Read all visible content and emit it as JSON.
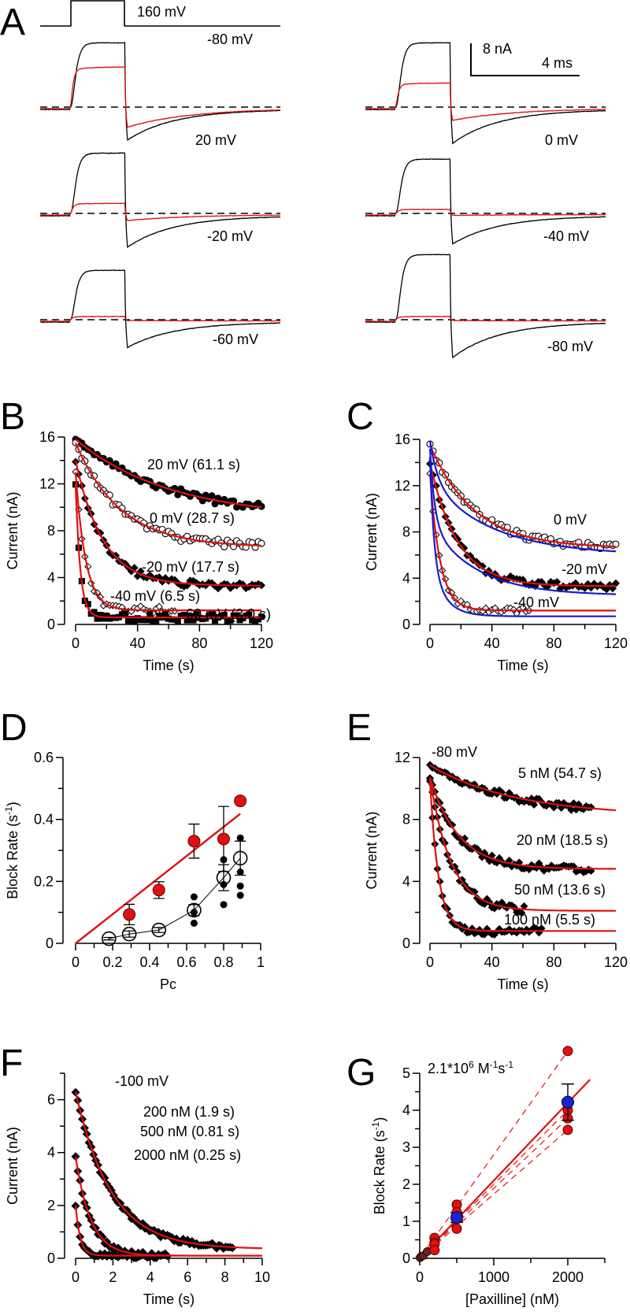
{
  "panel_labels": {
    "A": "A",
    "B": "B",
    "C": "C",
    "D": "D",
    "E": "E",
    "F": "F",
    "G": "G"
  },
  "chart_data": [
    {
      "panel": "A",
      "type": "line",
      "protocol": {
        "step_label": "160 mV",
        "hold_label": "-80 mV"
      },
      "scale_bar": {
        "current": "8 nA",
        "time": "4 ms"
      },
      "colors": {
        "control": "#000000",
        "blocked": "#e01010"
      },
      "traces": [
        {
          "label": "20 mV",
          "column": "left",
          "control_peak_nA": 16,
          "blocked_plateau_nA": 10,
          "control_tail_nA": -8.2,
          "blocked_tail_nA": -5.0
        },
        {
          "label": "0 mV",
          "column": "right",
          "control_peak_nA": 16,
          "blocked_plateau_nA": 6,
          "control_tail_nA": -9.0,
          "blocked_tail_nA": -3.3
        },
        {
          "label": "-20 mV",
          "column": "left",
          "control_peak_nA": 15,
          "blocked_plateau_nA": 2.5,
          "control_tail_nA": -8.4,
          "blocked_tail_nA": -1.8
        },
        {
          "label": "-40 mV",
          "column": "right",
          "control_peak_nA": 13.5,
          "blocked_plateau_nA": 1.0,
          "control_tail_nA": -7.6,
          "blocked_tail_nA": -0.5
        },
        {
          "label": "-60 mV",
          "column": "left",
          "control_peak_nA": 12.3,
          "blocked_plateau_nA": 0.8,
          "control_tail_nA": -6.9,
          "blocked_tail_nA": -0.2
        },
        {
          "label": "-80 mV",
          "column": "right",
          "control_peak_nA": 16.2,
          "blocked_plateau_nA": 0.8,
          "control_tail_nA": -9.4,
          "blocked_tail_nA": -0.2
        }
      ]
    },
    {
      "panel": "B",
      "type": "scatter",
      "xlabel": "Time (s)",
      "ylabel": "Current (nA)",
      "xlim": [
        0,
        120
      ],
      "ylim": [
        0,
        16
      ],
      "xticks": [
        "0",
        "40",
        "80",
        "120"
      ],
      "yticks": [
        "0",
        "4",
        "8",
        "12",
        "16"
      ],
      "fit_color": "#e01010",
      "series": [
        {
          "label": "20 mV (61.1 s)",
          "marker": "filled-circle",
          "start": 15.8,
          "plateau": 9.06,
          "tau": 61.1,
          "t_end": 120
        },
        {
          "label": "0 mV (28.7 s)",
          "marker": "open-circle",
          "start": 15.5,
          "plateau": 6.6,
          "tau": 28.7,
          "t_end": 120
        },
        {
          "label": "-20 mV (17.7 s)",
          "marker": "filled-diamond",
          "start": 14.0,
          "plateau": 3.3,
          "tau": 17.7,
          "t_end": 120
        },
        {
          "label": "-40 mV (6.5 s)",
          "marker": "open-diamond",
          "start": 13.0,
          "plateau": 1.2,
          "tau": 6.5,
          "t_end": 65
        },
        {
          "label": "-60 mV (3.0 s)",
          "marker": "filled-square",
          "start": 12.0,
          "plateau": 0.6,
          "tau": 3.0,
          "t_end": 120
        }
      ]
    },
    {
      "panel": "C",
      "type": "scatter",
      "xlabel": "Time (s)",
      "ylabel": "Current (nA)",
      "xlim": [
        0,
        120
      ],
      "ylim": [
        0,
        16
      ],
      "xticks": [
        "0",
        "40",
        "80",
        "120"
      ],
      "yticks": [
        "0",
        "4",
        "8",
        "12",
        "16"
      ],
      "colors": {
        "single_exp_fit": "#e01010",
        "double_exp_fit": "#1a1ad0"
      },
      "series": [
        {
          "label": "0 mV",
          "marker": "open-circle",
          "start": 15.5,
          "plateau": 6.6,
          "tau": 28.7,
          "double_exp": {
            "offset": 6.0,
            "a1": 3.5,
            "tau1": 5,
            "a2": 6.4,
            "tau2": 40
          },
          "t_end": 120
        },
        {
          "label": "-20 mV",
          "marker": "filled-diamond",
          "start": 14.0,
          "plateau": 3.3,
          "tau": 17.7,
          "double_exp": {
            "offset": 2.5,
            "a1": 6.5,
            "tau1": 3,
            "a2": 6.2,
            "tau2": 30
          },
          "t_end": 120
        },
        {
          "label": "-40 mV",
          "marker": "open-diamond",
          "start": 13.0,
          "plateau": 1.2,
          "tau": 6.5,
          "double_exp": {
            "offset": 0.7,
            "a1": 9.0,
            "tau1": 2.5,
            "a2": 4.8,
            "tau2": 9
          },
          "t_end": 65
        }
      ]
    },
    {
      "panel": "D",
      "type": "scatter",
      "xlabel": "Pc",
      "ylabel": "Block Rate (s",
      "ylabel_sup": "-1",
      "ylabel_end": ")",
      "xlim": [
        0,
        1
      ],
      "ylim": [
        0,
        0.6
      ],
      "xticks": [
        "0",
        "0.2",
        "0.4",
        "0.6",
        "0.8",
        "1"
      ],
      "yticks": [
        "0",
        "0.2",
        "0.4",
        "0.6"
      ],
      "red_points": [
        {
          "x": 0.29,
          "y": 0.093,
          "err": 0.033
        },
        {
          "x": 0.45,
          "y": 0.172,
          "err": 0.027
        },
        {
          "x": 0.64,
          "y": 0.33,
          "err": 0.055
        },
        {
          "x": 0.8,
          "y": 0.337,
          "err": 0.105
        },
        {
          "x": 0.89,
          "y": 0.46,
          "err": 0.008
        }
      ],
      "red_line": {
        "slope": 0.47,
        "x_end": 0.89
      },
      "open_means": [
        {
          "x": 0.18,
          "y": 0.015,
          "err": 0.004
        },
        {
          "x": 0.29,
          "y": 0.03,
          "err": 0.01
        },
        {
          "x": 0.45,
          "y": 0.043,
          "err": 0.008
        },
        {
          "x": 0.64,
          "y": 0.107,
          "err": 0.018
        },
        {
          "x": 0.8,
          "y": 0.212,
          "err": 0.042
        },
        {
          "x": 0.89,
          "y": 0.275,
          "err": 0.055
        }
      ],
      "individual_points": [
        {
          "x": 0.64,
          "values": [
            0.15,
            0.1,
            0.065
          ]
        },
        {
          "x": 0.8,
          "values": [
            0.27,
            0.19,
            0.125
          ]
        },
        {
          "x": 0.89,
          "values": [
            0.34,
            0.23,
            0.185,
            0.155
          ]
        }
      ],
      "colors": {
        "red": "#e01010",
        "black": "#000000"
      }
    },
    {
      "panel": "E",
      "type": "scatter",
      "xlabel": "Time (s)",
      "ylabel": "Current (nA)",
      "xlim": [
        0,
        120
      ],
      "ylim": [
        0,
        12
      ],
      "xticks": [
        "0",
        "40",
        "80",
        "120"
      ],
      "yticks": [
        "0",
        "4",
        "8",
        "12"
      ],
      "voltage_label": "-80 mV",
      "series": [
        {
          "label": "5 nM (54.7 s)",
          "start": 11.5,
          "plateau": 8.23,
          "tau": 54.7,
          "t_end": 104
        },
        {
          "label": "20 nM (18.5 s)",
          "start": 10.7,
          "plateau": 4.8,
          "tau": 18.5,
          "t_end": 104
        },
        {
          "label": "50 nM (13.6 s)",
          "start": 10.7,
          "plateau": 2.1,
          "tau": 13.6,
          "t_end": 62
        },
        {
          "label": "100 nM (5.5 s)",
          "start": 10.5,
          "plateau": 0.8,
          "tau": 5.5,
          "t_end": 72
        }
      ]
    },
    {
      "panel": "F",
      "type": "scatter",
      "xlabel": "Time (s)",
      "ylabel": "Current (nA)",
      "xlim": [
        0,
        10
      ],
      "ylim": [
        0,
        7
      ],
      "xticks": [
        "0",
        "2",
        "4",
        "6",
        "8",
        "10"
      ],
      "yticks": [
        "0",
        "2",
        "4",
        "6"
      ],
      "voltage_label": "-100 mV",
      "series": [
        {
          "label": "200 nM (1.9 s)",
          "start": 6.3,
          "plateau": 0.35,
          "tau": 1.9,
          "t_end": 8.5
        },
        {
          "label": "500 nM (0.81 s)",
          "start": 3.85,
          "plateau": 0.1,
          "tau": 0.81,
          "t_end": 5.0
        },
        {
          "label": "2000 nM (0.25 s)",
          "start": 2.0,
          "plateau": 0.1,
          "tau": 0.25,
          "t_end": 4.5
        }
      ]
    },
    {
      "panel": "G",
      "type": "scatter",
      "xlabel": "[Paxilline]  (nM)",
      "ylabel": "Block Rate (s",
      "ylabel_sup": "-1",
      "ylabel_end": ")",
      "xlim": [
        0,
        2500
      ],
      "ylim": [
        0,
        5
      ],
      "xticks": [
        "0",
        "1000",
        "2000"
      ],
      "yticks": [
        "0",
        "1",
        "2",
        "3",
        "4",
        "5"
      ],
      "annotation": {
        "base": "2.1*10",
        "exp1": "6",
        "mid": " M",
        "exp2": "-1",
        "s": "s",
        "exp3": "-1"
      },
      "fit": {
        "slope_per_nM": 0.0021,
        "x_end": 2300
      },
      "cells": [
        {
          "x": [
            200,
            500,
            2000
          ],
          "y": [
            0.55,
            1.45,
            5.6
          ]
        },
        {
          "x": [
            200,
            500,
            2000
          ],
          "y": [
            0.42,
            1.25,
            4.0
          ]
        },
        {
          "x": [
            200,
            500,
            2000
          ],
          "y": [
            0.38,
            0.8,
            3.78
          ]
        },
        {
          "x": [
            200,
            2000
          ],
          "y": [
            0.22,
            3.47
          ]
        }
      ],
      "low_conc_points": [
        {
          "x": 5,
          "y": 0.018
        },
        {
          "x": 20,
          "y": 0.054
        },
        {
          "x": 50,
          "y": 0.074
        },
        {
          "x": 100,
          "y": 0.18
        }
      ],
      "means": [
        {
          "x": 500,
          "y": 1.1,
          "err": 0.13
        },
        {
          "x": 2000,
          "y": 4.22,
          "err": 0.49
        }
      ],
      "colors": {
        "points": "#e01010",
        "means": "#1a22d8",
        "fit": "#e01010"
      }
    }
  ]
}
